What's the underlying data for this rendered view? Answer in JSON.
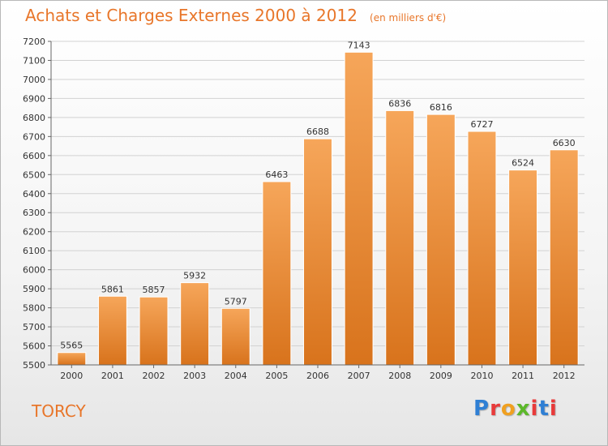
{
  "header": {
    "title": "Achats et Charges Externes 2000 à 2012",
    "subtitle": "(en milliers d'€)"
  },
  "footer": {
    "place": "TORCY",
    "logo_text": "Proxiti"
  },
  "colors": {
    "accent": "#e8762a",
    "bar_top": "#f6a65a",
    "bar_bottom": "#d8731c",
    "logo": [
      "#2f7fd4",
      "#e83a3a",
      "#f0a020",
      "#5cb82a",
      "#e83a3a",
      "#2f7fd4",
      "#e83a3a"
    ]
  },
  "chart_data": {
    "type": "bar",
    "title": "Achats et Charges Externes 2000 à 2012",
    "subtitle": "(en milliers d'€)",
    "categories": [
      "2000",
      "2001",
      "2002",
      "2003",
      "2004",
      "2005",
      "2006",
      "2007",
      "2008",
      "2009",
      "2010",
      "2011",
      "2012"
    ],
    "values": [
      5565,
      5861,
      5857,
      5932,
      5797,
      6463,
      6688,
      7143,
      6836,
      6816,
      6727,
      6524,
      6630
    ],
    "ylim": [
      5500,
      7200
    ],
    "yticks": [
      5500,
      5600,
      5700,
      5800,
      5900,
      6000,
      6100,
      6200,
      6300,
      6400,
      6500,
      6600,
      6700,
      6800,
      6900,
      7000,
      7100,
      7200
    ],
    "grid": true,
    "data_labels": true,
    "xlabel": "",
    "ylabel": ""
  }
}
